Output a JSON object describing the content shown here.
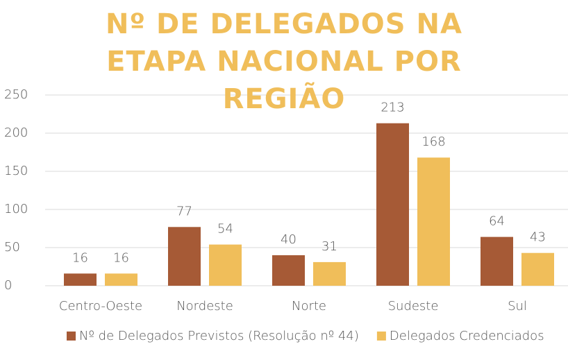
{
  "chart_data": {
    "type": "bar",
    "title": "Nº DE DELEGADOS NA ETAPA NACIONAL POR REGIÃO",
    "categories": [
      "Centro-Oeste",
      "Nordeste",
      "Norte",
      "Sudeste",
      "Sul"
    ],
    "series": [
      {
        "name": "Nº de Delegados Previstos (Resolução nº 44)",
        "color": "#a65a36",
        "values": [
          16,
          77,
          40,
          213,
          64
        ]
      },
      {
        "name": "Delegados Credenciados",
        "color": "#f0be5a",
        "values": [
          16,
          54,
          31,
          168,
          43
        ]
      }
    ],
    "ylim": [
      0,
      250
    ],
    "yticks": [
      0,
      50,
      100,
      150,
      200,
      250
    ],
    "grid": true,
    "legend": "bottom"
  }
}
